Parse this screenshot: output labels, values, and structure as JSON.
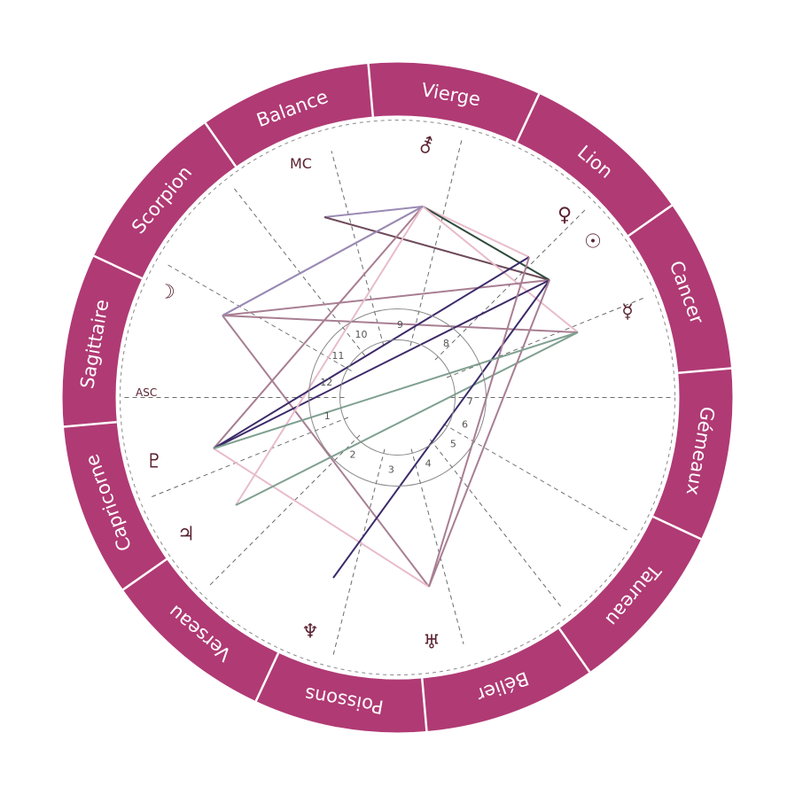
{
  "wheel": {
    "band_color": "#b03a74",
    "divider_color": "#ffffff",
    "signs": [
      {
        "name": "Vierge"
      },
      {
        "name": "Lion"
      },
      {
        "name": "Cancer"
      },
      {
        "name": "Gémeaux"
      },
      {
        "name": "Taureau"
      },
      {
        "name": "Bélier"
      },
      {
        "name": "Poissons"
      },
      {
        "name": "Verseau"
      },
      {
        "name": "Capricorne"
      },
      {
        "name": "Sagittaire"
      },
      {
        "name": "Scorpion"
      },
      {
        "name": "Balance"
      }
    ]
  },
  "angles": {
    "asc_label": "ASC",
    "mc_label": "MC"
  },
  "houses": [
    "1",
    "2",
    "3",
    "4",
    "5",
    "6",
    "7",
    "8",
    "9",
    "10",
    "11",
    "12"
  ],
  "planets": [
    {
      "name": "Mars-Chiron",
      "glyph": "⚦",
      "icon": "mars-icon"
    },
    {
      "name": "Venus",
      "glyph": "♀",
      "icon": "venus-icon"
    },
    {
      "name": "Sun",
      "glyph": "☉",
      "icon": "sun-icon"
    },
    {
      "name": "Mercury",
      "glyph": "☿",
      "icon": "mercury-icon"
    },
    {
      "name": "Moon",
      "glyph": "☽",
      "icon": "moon-icon"
    },
    {
      "name": "Pluto",
      "glyph": "♇",
      "icon": "pluto-icon"
    },
    {
      "name": "Jupiter",
      "glyph": "♃",
      "icon": "jupiter-icon"
    },
    {
      "name": "Neptune",
      "glyph": "♆",
      "icon": "neptune-icon"
    },
    {
      "name": "Uranus",
      "glyph": "♅",
      "icon": "uranus-icon"
    }
  ],
  "aspect_colors": {
    "lavender": "#9a8ab4",
    "mauve": "#a87e92",
    "pink": "#e8bccb",
    "indigo": "#3c2a6a",
    "sage": "#7fa090",
    "plum": "#6e4a5a",
    "darkgreen": "#2f4a3c"
  }
}
